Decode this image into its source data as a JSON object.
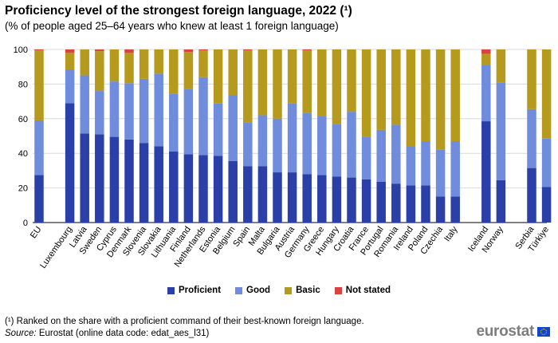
{
  "header": {
    "title": "Proficiency level of the strongest foreign language, 2022 (¹)",
    "subtitle": "(% of people aged 25–64 years who knew at least 1 foreign language)"
  },
  "footer": {
    "footnote": "(¹) Ranked on the share with a proficient command of their best-known foreign language.",
    "source_label": "Source:",
    "source_text": "Eurostat (online data code: edat_aes_l31)",
    "logo_text": "eurostat"
  },
  "colors": {
    "proficient": "#2a40a8",
    "good": "#6f8cdd",
    "basic": "#b59a1e",
    "not_stated": "#d9443e",
    "grid": "#d9d9d9"
  },
  "chart_data": {
    "type": "bar",
    "stacked": true,
    "title": "Proficiency level of the strongest foreign language, 2022 (¹)",
    "subtitle": "(% of people aged 25–64 years who knew at least 1 foreign language)",
    "ylim": [
      0,
      100
    ],
    "yticks": [
      0,
      20,
      40,
      60,
      80,
      100
    ],
    "grid": true,
    "legend_position": "bottom",
    "groups": [
      [
        "EU"
      ],
      [
        "Luxembourg",
        "Latvia",
        "Sweden",
        "Cyprus",
        "Denmark",
        "Slovenia",
        "Slovakia",
        "Lithuania",
        "Finland",
        "Netherlands",
        "Estonia",
        "Belgium",
        "Spain",
        "Malta",
        "Bulgaria",
        "Austria",
        "Germany",
        "Greece",
        "Hungary",
        "Croatia",
        "France",
        "Portugal",
        "Romania",
        "Ireland",
        "Poland",
        "Czechia",
        "Italy"
      ],
      [
        "Iceland",
        "Norway"
      ],
      [
        "Serbia",
        "Türkiye"
      ]
    ],
    "categories": [
      "EU",
      "Luxembourg",
      "Latvia",
      "Sweden",
      "Cyprus",
      "Denmark",
      "Slovenia",
      "Slovakia",
      "Lithuania",
      "Finland",
      "Netherlands",
      "Estonia",
      "Belgium",
      "Spain",
      "Malta",
      "Bulgaria",
      "Austria",
      "Germany",
      "Greece",
      "Hungary",
      "Croatia",
      "France",
      "Portugal",
      "Romania",
      "Ireland",
      "Poland",
      "Czechia",
      "Italy",
      "Iceland",
      "Norway",
      "Serbia",
      "Türkiye"
    ],
    "series": [
      {
        "name": "Proficient",
        "values": [
          27.5,
          69,
          51.5,
          51,
          49.5,
          48,
          46,
          44,
          41,
          39.5,
          39,
          38.5,
          35.5,
          32.5,
          32.5,
          29,
          29,
          28,
          27.5,
          26.5,
          26,
          25,
          23.5,
          22.5,
          21.5,
          21.5,
          15,
          15,
          58.5,
          24.5,
          31.5,
          20.5
        ]
      },
      {
        "name": "Good",
        "values": [
          31.5,
          19.5,
          33.5,
          25,
          32,
          32.5,
          37,
          42,
          33.5,
          37.5,
          45,
          30.5,
          38,
          25.5,
          29.5,
          31,
          40,
          35.5,
          34,
          30.5,
          38,
          24.5,
          30,
          34,
          22.5,
          25.5,
          27,
          32,
          32.5,
          56.5,
          34,
          28
        ]
      },
      {
        "name": "Basic",
        "values": [
          40.5,
          9.5,
          15,
          23,
          18.5,
          17.5,
          17,
          14,
          25.5,
          21.5,
          15.5,
          31,
          26.5,
          41.5,
          38,
          40,
          31,
          36,
          38.5,
          43,
          36,
          50.5,
          46.5,
          43.5,
          56,
          53,
          58,
          53,
          6.5,
          19,
          34.5,
          51.5
        ]
      },
      {
        "name": "Not stated",
        "values": [
          0.5,
          2,
          0,
          1,
          0,
          2,
          0,
          0,
          0,
          1.5,
          0.5,
          0,
          0,
          0.5,
          0,
          0,
          0,
          0.5,
          0,
          0,
          0,
          0,
          0,
          0,
          0,
          0,
          0,
          0,
          2.5,
          0,
          0,
          0
        ]
      }
    ]
  }
}
